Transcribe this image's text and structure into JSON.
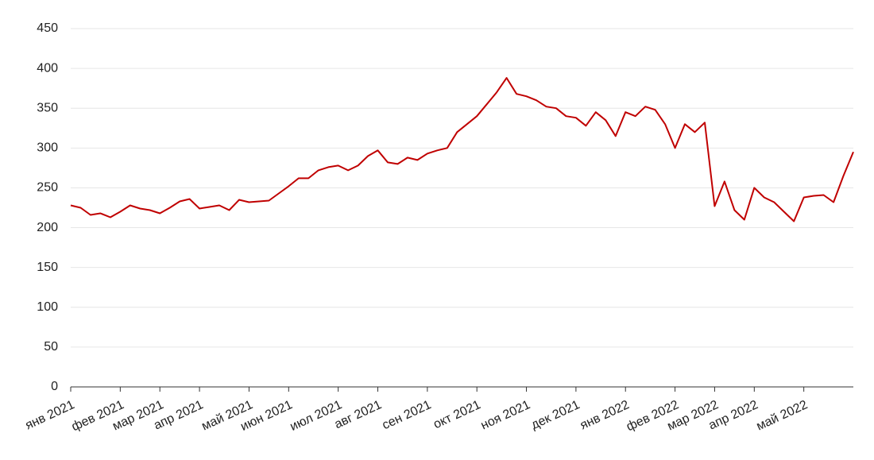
{
  "chart_data": {
    "type": "line",
    "categories": [
      "янв 2021",
      null,
      null,
      null,
      null,
      "фев 2021",
      null,
      null,
      null,
      "мар 2021",
      null,
      null,
      null,
      "апр 2021",
      null,
      null,
      null,
      null,
      "май 2021",
      null,
      null,
      null,
      "июн 2021",
      null,
      null,
      null,
      null,
      "июл 2021",
      null,
      null,
      null,
      "авг 2021",
      null,
      null,
      null,
      null,
      "сен 2021",
      null,
      null,
      null,
      null,
      "окт 2021",
      null,
      null,
      null,
      null,
      "ноя 2021",
      null,
      null,
      null,
      null,
      "дек 2021",
      null,
      null,
      null,
      null,
      "янв 2022",
      null,
      null,
      null,
      null,
      "фев 2022",
      null,
      null,
      null,
      "мар 2022",
      null,
      null,
      null,
      "апр 2022",
      null,
      null,
      null,
      null,
      "май 2022",
      null,
      null,
      null,
      null,
      null
    ],
    "series": [
      {
        "color": "#c00000",
        "values": [
          228,
          225,
          216,
          218,
          213,
          220,
          228,
          224,
          222,
          218,
          225,
          233,
          236,
          224,
          226,
          228,
          222,
          235,
          232,
          233,
          234,
          243,
          252,
          262,
          262,
          272,
          276,
          278,
          272,
          278,
          290,
          297,
          282,
          280,
          288,
          285,
          293,
          297,
          300,
          320,
          330,
          340,
          355,
          370,
          388,
          368,
          365,
          360,
          352,
          350,
          340,
          338,
          328,
          345,
          335,
          315,
          345,
          340,
          352,
          348,
          330,
          300,
          330,
          320,
          332,
          227,
          258,
          222,
          210,
          250,
          238,
          232,
          220,
          208,
          238,
          240,
          241,
          232,
          265,
          295
        ]
      }
    ],
    "ylim": [
      0,
      450
    ],
    "yticks": [
      0,
      50,
      100,
      150,
      200,
      250,
      300,
      350,
      400,
      450
    ],
    "grid": true
  }
}
